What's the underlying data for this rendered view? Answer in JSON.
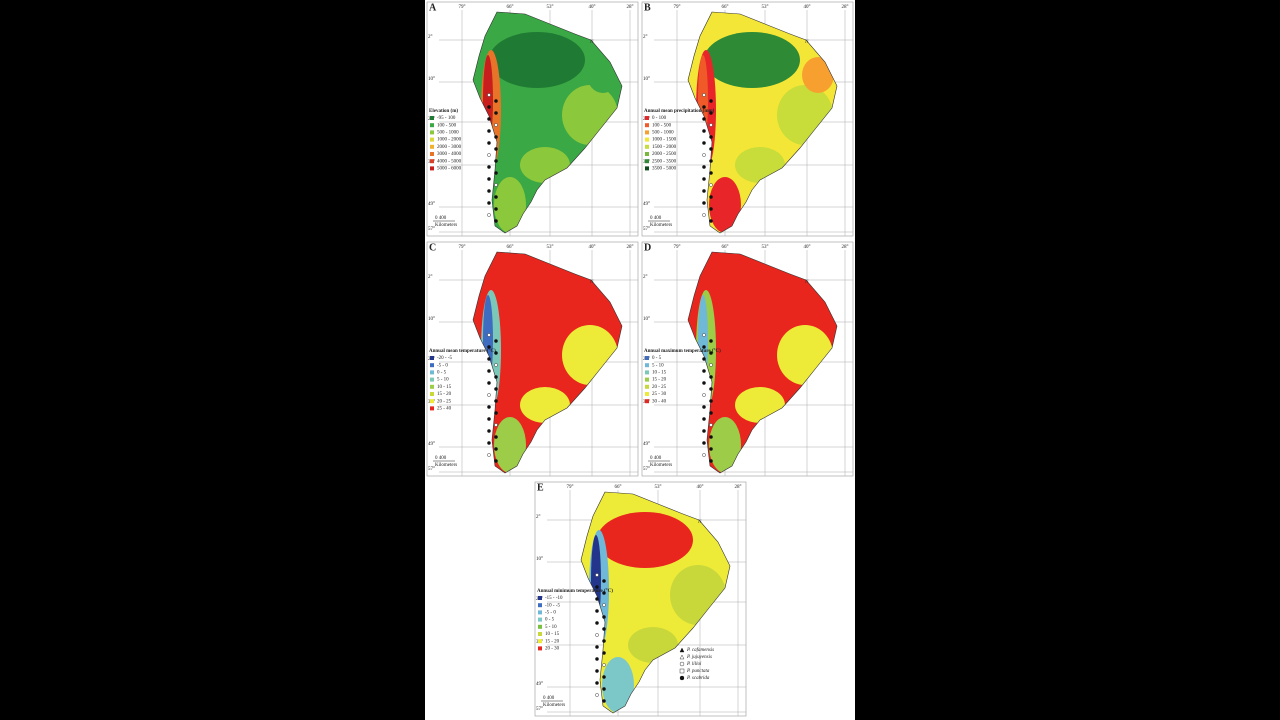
{
  "longitudes": [
    "79°",
    "66°",
    "53°",
    "40°",
    "28°"
  ],
  "latitudes": [
    "2°",
    "10°",
    "23°",
    "36°",
    "49°",
    "57°"
  ],
  "scale": {
    "numbers": "0 400",
    "unit": "Kilometers"
  },
  "north": "N",
  "panels": [
    {
      "label": "A",
      "legend_title": "Elevation (m)",
      "legend": [
        {
          "label": "-95 - 100",
          "color": "#1f7a33"
        },
        {
          "label": "100 - 500",
          "color": "#3aa845"
        },
        {
          "label": "500 - 1000",
          "color": "#8cc83c"
        },
        {
          "label": "1000 - 2000",
          "color": "#d8d83a"
        },
        {
          "label": "2000 - 3000",
          "color": "#f0b030"
        },
        {
          "label": "3000 - 4000",
          "color": "#e8742a"
        },
        {
          "label": "4000 - 5000",
          "color": "#d8402a"
        },
        {
          "label": "5000 - 6000",
          "color": "#c81e1e"
        }
      ]
    },
    {
      "label": "B",
      "legend_title": "Annual mean precipitation (mm)",
      "legend": [
        {
          "label": "0 - 100",
          "color": "#e8262a"
        },
        {
          "label": "100 - 500",
          "color": "#f05a28"
        },
        {
          "label": "500 - 1000",
          "color": "#f7a030"
        },
        {
          "label": "1000 - 1500",
          "color": "#f4e636"
        },
        {
          "label": "1500 - 2000",
          "color": "#c8dc3a"
        },
        {
          "label": "2000 - 2500",
          "color": "#78b83c"
        },
        {
          "label": "2500 - 3500",
          "color": "#2e8a34"
        },
        {
          "label": "3500 - 5000",
          "color": "#0e4a1e"
        }
      ]
    },
    {
      "label": "C",
      "legend_title": "Annual mean temperature (°C)",
      "legend": [
        {
          "label": "-20 - -5",
          "color": "#23368c"
        },
        {
          "label": "-5 - 0",
          "color": "#3d6cc0"
        },
        {
          "label": "0 - 5",
          "color": "#6fb8d8"
        },
        {
          "label": "5 - 10",
          "color": "#7cc8b8"
        },
        {
          "label": "10 - 15",
          "color": "#9ccc48"
        },
        {
          "label": "15 - 20",
          "color": "#c8d83a"
        },
        {
          "label": "20 - 25",
          "color": "#eeea38"
        },
        {
          "label": "25 - 40",
          "color": "#e8261e"
        }
      ]
    },
    {
      "label": "D",
      "legend_title": "Annual maximum temperature (°C)",
      "legend": [
        {
          "label": "0 - 5",
          "color": "#3d6cc0"
        },
        {
          "label": "5 - 10",
          "color": "#6fb8d8"
        },
        {
          "label": "10 - 15",
          "color": "#7cc8b8"
        },
        {
          "label": "15 - 20",
          "color": "#9ccc48"
        },
        {
          "label": "20 - 25",
          "color": "#c8d83a"
        },
        {
          "label": "25 - 30",
          "color": "#eeea38"
        },
        {
          "label": "30 - 40",
          "color": "#e8261e"
        }
      ]
    },
    {
      "label": "E",
      "legend_title": "Annual minimum temperature (°C)",
      "legend": [
        {
          "label": "-15 - -10",
          "color": "#23368c"
        },
        {
          "label": "-10 - -5",
          "color": "#3d6cc0"
        },
        {
          "label": "-5 - 0",
          "color": "#6fb8d8"
        },
        {
          "label": "0 - 5",
          "color": "#7cc8c8"
        },
        {
          "label": "5 - 10",
          "color": "#78c040"
        },
        {
          "label": "10 - 15",
          "color": "#c8d83a"
        },
        {
          "label": "15 - 20",
          "color": "#eeea38"
        },
        {
          "label": "20 - 30",
          "color": "#e8261e"
        }
      ]
    }
  ],
  "species": [
    "P. cafamensis",
    "P. jujuyensis",
    "P. lilloi",
    "P. punctata",
    "P. scabrida"
  ]
}
